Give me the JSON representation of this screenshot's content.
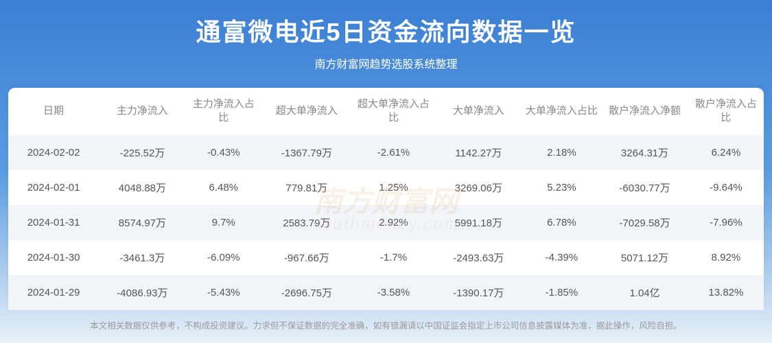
{
  "header": {
    "title": "通富微电近5日资金流向数据一览",
    "subtitle": "南方财富网趋势选股系统整理"
  },
  "table": {
    "columns": [
      "日期",
      "主力净流入",
      "主力净流入占比",
      "超大单净流入",
      "超大单净流入占比",
      "大单净流入",
      "大单净流入占比",
      "散户净流入净额",
      "散户净流入占比"
    ],
    "column_widths": [
      "12%",
      "11.5%",
      "10%",
      "12%",
      "11%",
      "11.5%",
      "10.5%",
      "11.5%",
      "10%"
    ],
    "rows": [
      [
        "2024-02-02",
        "-225.52万",
        "-0.43%",
        "-1367.79万",
        "-2.61%",
        "1142.27万",
        "2.18%",
        "3264.31万",
        "6.24%"
      ],
      [
        "2024-02-01",
        "4048.88万",
        "6.48%",
        "779.81万",
        "1.25%",
        "3269.06万",
        "5.23%",
        "-6030.77万",
        "-9.64%"
      ],
      [
        "2024-01-31",
        "8574.97万",
        "9.7%",
        "2583.79万",
        "2.92%",
        "5991.18万",
        "6.78%",
        "-7029.58万",
        "-7.96%"
      ],
      [
        "2024-01-30",
        "-3461.3万",
        "-6.09%",
        "-967.66万",
        "-1.7%",
        "-2493.63万",
        "-4.39%",
        "5071.12万",
        "8.92%"
      ],
      [
        "2024-01-29",
        "-4086.93万",
        "-5.43%",
        "-2696.75万",
        "-3.58%",
        "-1390.17万",
        "-1.85%",
        "1.04亿",
        "13.82%"
      ]
    ],
    "header_text_color": "#888888",
    "cell_text_color": "#555555",
    "row_odd_bg": "#f1f5fa",
    "row_even_bg": "#ffffff",
    "header_fontsize": 15,
    "cell_fontsize": 15
  },
  "footer": {
    "text": "本文相关数据仅供参考，不构成投资建议。力求但不保证数据的完全准确，如有错漏请以中国证监会指定上市公司信息披露媒体为准，据此操作，风险自担。"
  },
  "watermark": {
    "text_cn": "南方财富网",
    "text_en": "southmoney.com"
  },
  "styling": {
    "bg_gradient_top": "#3b7fd4",
    "bg_gradient_mid": "#5a9ce0",
    "bg_gradient_bottom": "#e8f0f8",
    "title_color": "#ffffff",
    "title_fontsize": 36,
    "subtitle_fontsize": 16,
    "footer_color": "#9a9a9a",
    "footer_fontsize": 12.5,
    "watermark_color": "rgba(220, 180, 120, 0.18)"
  }
}
